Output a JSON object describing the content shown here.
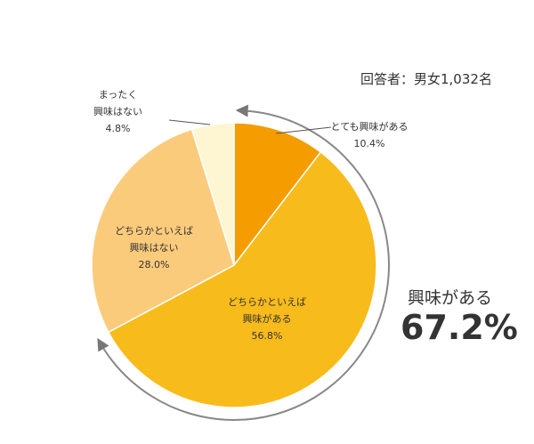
{
  "chart_data": {
    "type": "pie",
    "note": "回答者：男女1,032名",
    "categories": [
      "とても興味がある",
      "どちらかといえば\n興味がある",
      "どちらかといえば\n興味はない",
      "まったく\n興味はない"
    ],
    "values": [
      10.4,
      56.8,
      28.0,
      4.8
    ],
    "value_labels": [
      "10.4%",
      "56.8%",
      "28.0%",
      "4.8%"
    ],
    "colors": [
      "#f59c00",
      "#f8bb1c",
      "#fbcb7c",
      "#fef5d2"
    ],
    "summary": {
      "label": "興味がある",
      "value_label": "67.2%"
    }
  }
}
